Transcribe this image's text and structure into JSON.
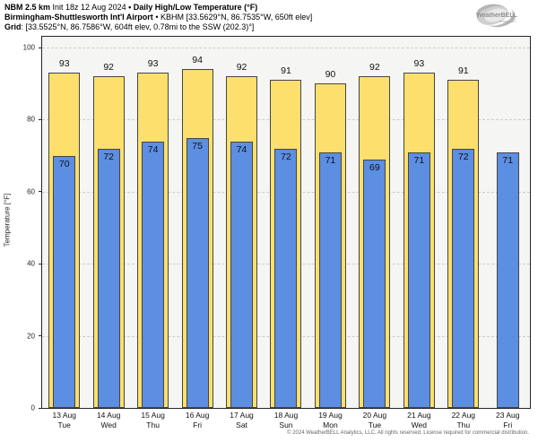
{
  "header": {
    "model": "NBM 2.5 km",
    "init": " Init 18z 12 Aug 2024 ",
    "sep1": "• ",
    "product": "Daily High/Low Temperature (°F)",
    "station": "Birmingham-Shuttlesworth Int'l Airport",
    "sep2": " • ",
    "station_info": "KBHM [33.5629°N, 86.7535°W, 650ft elev]",
    "grid_label": "Grid",
    "grid_info": ": [33.5525°N, 86.7586°W, 604ft elev, 0.78mi to the SSW (202.3)°]"
  },
  "logo": {
    "name": "WeatherBELL",
    "sub": "Analytics LLC"
  },
  "chart_data": {
    "type": "bar",
    "title": "NBM 2.5 km Init 18z 12 Aug 2024 • Daily High/Low Temperature (°F)",
    "station": "Birmingham-Shuttlesworth Int'l Airport (KBHM)",
    "ylabel": "Temperature [°F]",
    "ylim": [
      0,
      100
    ],
    "yticks": [
      0,
      20,
      40,
      60,
      80,
      100
    ],
    "grid": "horizontal dashed gridlines at y ticks",
    "legend_position": "none",
    "categories": [
      {
        "date": "13 Aug",
        "day": "Tue"
      },
      {
        "date": "14 Aug",
        "day": "Wed"
      },
      {
        "date": "15 Aug",
        "day": "Thu"
      },
      {
        "date": "16 Aug",
        "day": "Fri"
      },
      {
        "date": "17 Aug",
        "day": "Sat"
      },
      {
        "date": "18 Aug",
        "day": "Sun"
      },
      {
        "date": "19 Aug",
        "day": "Mon"
      },
      {
        "date": "20 Aug",
        "day": "Tue"
      },
      {
        "date": "21 Aug",
        "day": "Wed"
      },
      {
        "date": "22 Aug",
        "day": "Thu"
      },
      {
        "date": "23 Aug",
        "day": "Fri"
      }
    ],
    "series": [
      {
        "name": "Daily High",
        "color": "#fcdf6d",
        "values": [
          93,
          92,
          93,
          94,
          92,
          91,
          90,
          92,
          93,
          91,
          null
        ]
      },
      {
        "name": "Daily Low",
        "color": "#5c8ee2",
        "values": [
          70,
          72,
          74,
          75,
          74,
          72,
          71,
          69,
          71,
          72,
          71
        ]
      }
    ]
  },
  "footer": "© 2024 WeatherBELL Analytics, LLC. All rights reserved. License required for commercial distribution.",
  "colors": {
    "figure_background": "#ffffff",
    "plot_background": "#f5f5f4",
    "gridline": "#cccccc",
    "axis": "#262626",
    "bar_border": "#454545",
    "high_bar": "#fcdf6d",
    "low_bar": "#5c8ee2"
  }
}
